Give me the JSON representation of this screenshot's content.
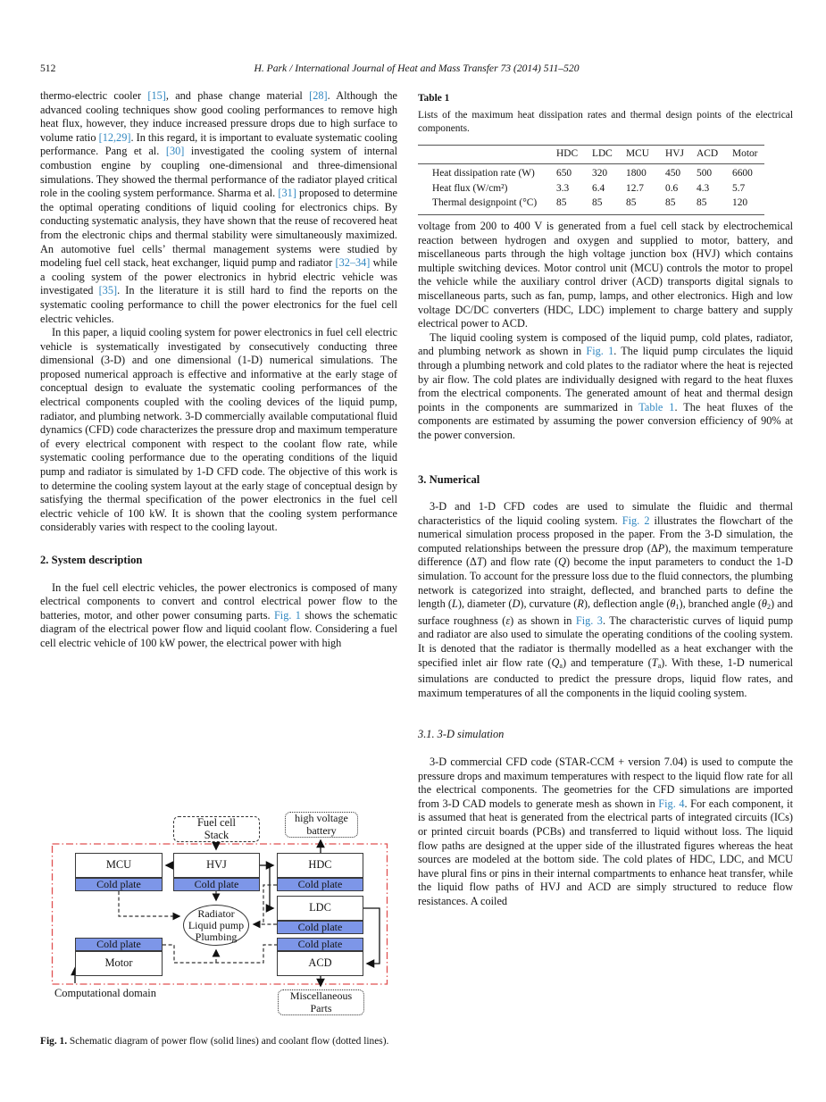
{
  "page": {
    "number": "512",
    "running_head": "H. Park / International Journal of Heat and Mass Transfer 73 (2014) 511–520"
  },
  "colors": {
    "link_blue": "#3187c0",
    "cold_plate_blue": "#7d96e8",
    "domain_red": "#e05252"
  },
  "left_column": {
    "para1_segments": [
      {
        "t": "thermo-electric cooler "
      },
      {
        "t": "[15]",
        "link": true
      },
      {
        "t": ", and phase change material "
      },
      {
        "t": "[28]",
        "link": true
      },
      {
        "t": ". Although the advanced cooling techniques show good cooling performances to remove high heat flux, however, they induce increased pressure drops due to high surface to volume ratio "
      },
      {
        "t": "[12,29]",
        "link": true
      },
      {
        "t": ". In this regard, it is important to evaluate systematic cooling performance. Pang et al. "
      },
      {
        "t": "[30]",
        "link": true
      },
      {
        "t": " investigated the cooling system of internal combustion engine by coupling one-dimensional and three-dimensional simulations. They showed the thermal performance of the radiator played critical role in the cooling system performance. Sharma et al. "
      },
      {
        "t": "[31]",
        "link": true
      },
      {
        "t": " proposed to determine the optimal operating conditions of liquid cooling for electronics chips. By conducting systematic analysis, they have shown that the reuse of recovered heat from the electronic chips and thermal stability were simultaneously maximized. An automotive fuel cells’ thermal management systems were studied by modeling fuel cell stack, heat exchanger, liquid pump and radiator "
      },
      {
        "t": "[32–34]",
        "link": true
      },
      {
        "t": " while a cooling system of the power electronics in hybrid electric vehicle was investigated "
      },
      {
        "t": "[35]",
        "link": true
      },
      {
        "t": ". In the literature it is still hard to find the reports on the systematic cooling performance to chill the power electronics for the fuel cell electric vehicles."
      }
    ],
    "para2": "In this paper, a liquid cooling system for power electronics in fuel cell electric vehicle is systematically investigated by consecutively conducting three dimensional (3-D) and one dimensional (1-D) numerical simulations. The proposed numerical approach is effective and informative at the early stage of conceptual design to evaluate the systematic cooling performances of the electrical components coupled with the cooling devices of the liquid pump, radiator, and plumbing network. 3-D commercially available computational fluid dynamics (CFD) code characterizes the pressure drop and maximum temperature of every electrical component with respect to the coolant flow rate, while systematic cooling performance due to the operating conditions of the liquid pump and radiator is simulated by 1-D CFD code. The objective of this work is to determine the cooling system layout at the early stage of conceptual design by satisfying the thermal specification of the power electronics in the fuel cell electric vehicle of 100 kW. It is shown that the cooling system performance considerably varies with respect to the cooling layout.",
    "section2_heading": "2. System description",
    "para3_segments": [
      {
        "t": "In the fuel cell electric vehicles, the power electronics is composed of many electrical components to convert and control electrical power flow to the batteries, motor, and other power consuming parts. "
      },
      {
        "t": "Fig. 1",
        "link": true
      },
      {
        "t": " shows the schematic diagram of the electrical power flow and liquid coolant flow. Considering a fuel cell electric vehicle of 100 kW power, the electrical power with high"
      }
    ]
  },
  "right_column": {
    "para1": "voltage from 200 to 400 V is generated from a fuel cell stack by electrochemical reaction between hydrogen and oxygen and supplied to motor, battery, and miscellaneous parts through the high voltage junction box (HVJ) which contains multiple switching devices. Motor control unit (MCU) controls the motor to propel the vehicle while the auxiliary control driver (ACD) transports digital signals to miscellaneous parts, such as fan, pump, lamps, and other electronics. High and low voltage DC/DC converters (HDC, LDC) implement to charge battery and supply electrical power to ACD.",
    "para2_segments": [
      {
        "t": "The liquid cooling system is composed of the liquid pump, cold plates, radiator, and plumbing network as shown in "
      },
      {
        "t": "Fig. 1",
        "link": true
      },
      {
        "t": ". The liquid pump circulates the liquid through a plumbing network and cold plates to the radiator where the heat is rejected by air flow. The cold plates are individually designed with regard to the heat fluxes from the electrical components. The generated amount of heat and thermal design points in the components are summarized in "
      },
      {
        "t": "Table 1",
        "link": true
      },
      {
        "t": ". The heat fluxes of the components are estimated by assuming the power conversion efficiency of 90% at the power conversion."
      }
    ],
    "section3_heading": "3. Numerical",
    "para3_segments": [
      {
        "t": "3-D and 1-D CFD codes are used to simulate the fluidic and thermal characteristics of the liquid cooling system. "
      },
      {
        "t": "Fig. 2",
        "link": true
      },
      {
        "t": " illustrates the flowchart of the numerical simulation process proposed in the paper. From the 3-D simulation, the computed relationships between the pressure drop (Δ"
      },
      {
        "t": "P",
        "i": true
      },
      {
        "t": "), the maximum temperature difference (Δ"
      },
      {
        "t": "T",
        "i": true
      },
      {
        "t": ") and flow rate ("
      },
      {
        "t": "Q",
        "i": true
      },
      {
        "t": ") become the input parameters to conduct the 1-D simulation. To account for the pressure loss due to the fluid connectors, the plumbing network is categorized into straight, deflected, and branched parts to define the length ("
      },
      {
        "t": "L",
        "i": true
      },
      {
        "t": "), diameter ("
      },
      {
        "t": "D",
        "i": true
      },
      {
        "t": "), curvature ("
      },
      {
        "t": "R",
        "i": true
      },
      {
        "t": "), deflection angle ("
      },
      {
        "t": "θ",
        "i": true
      },
      {
        "t": "1",
        "sub": true
      },
      {
        "t": "), branched angle ("
      },
      {
        "t": "θ",
        "i": true
      },
      {
        "t": "2",
        "sub": true
      },
      {
        "t": ") and surface roughness ("
      },
      {
        "t": "ε",
        "i": true
      },
      {
        "t": ") as shown in "
      },
      {
        "t": "Fig. 3",
        "link": true
      },
      {
        "t": ". The characteristic curves of liquid pump and radiator are also used to simulate the operating conditions of the cooling system. It is denoted that the radiator is thermally modelled as a heat exchanger with the specified inlet air flow rate ("
      },
      {
        "t": "Q",
        "i": true
      },
      {
        "t": "a",
        "sub": true
      },
      {
        "t": ") and temperature ("
      },
      {
        "t": "T",
        "i": true
      },
      {
        "t": "a",
        "sub": true
      },
      {
        "t": "). With these, 1-D numerical simulations are conducted to predict the pressure drops, liquid flow rates, and maximum temperatures of all the components in the liquid cooling system."
      }
    ],
    "section31_heading": "3.1. 3-D simulation",
    "para4_segments": [
      {
        "t": "3-D commercial CFD code (STAR-CCM + version 7.04) is used to compute the pressure drops and maximum temperatures with respect to the liquid flow rate for all the electrical components. The geometries for the CFD simulations are imported from 3-D CAD models to generate mesh as shown in "
      },
      {
        "t": "Fig. 4",
        "link": true
      },
      {
        "t": ". For each component, it is assumed that heat is generated from the electrical parts of integrated circuits (ICs) or printed circuit boards (PCBs) and transferred to liquid without loss. The liquid flow paths are designed at the upper side of the illustrated figures whereas the heat sources are modeled at the bottom side. The cold plates of HDC, LDC, and MCU have plural fins or pins in their internal compartments to enhance heat transfer, while the liquid flow paths of HVJ and ACD are simply structured to reduce flow resistances. A coiled"
      }
    ]
  },
  "table1": {
    "label": "Table 1",
    "caption": "Lists of the maximum heat dissipation rates and thermal design points of the electrical components.",
    "columns": [
      "HDC",
      "LDC",
      "MCU",
      "HVJ",
      "ACD",
      "Motor"
    ],
    "rows": [
      {
        "label": "Heat dissipation rate (W)",
        "values": [
          "650",
          "320",
          "1800",
          "450",
          "500",
          "6600"
        ]
      },
      {
        "label": "Heat flux (W/cm²)",
        "values": [
          "3.3",
          "6.4",
          "12.7",
          "0.6",
          "4.3",
          "5.7"
        ]
      },
      {
        "label": "Thermal designpoint (°C)",
        "values": [
          "85",
          "85",
          "85",
          "85",
          "85",
          "120"
        ]
      }
    ]
  },
  "figure1": {
    "fuel_cell_stack": [
      "Fuel cell",
      "Stack"
    ],
    "hv_battery": [
      "high voltage",
      "battery"
    ],
    "mcu": "MCU",
    "hvj": "HVJ",
    "hdc": "HDC",
    "ldc": "LDC",
    "motor": "Motor",
    "acd": "ACD",
    "cold_plate": "Cold plate",
    "pump_ellipse": [
      "Radiator",
      "Liquid pump",
      "Plumbing"
    ],
    "misc_parts": [
      "Miscellaneous",
      "Parts"
    ],
    "domain_label": "Computational domain",
    "caption_segments": [
      {
        "t": "Fig. 1.",
        "b": true
      },
      {
        "t": " Schematic diagram of power flow (solid lines) and coolant flow (dotted lines)."
      }
    ]
  }
}
